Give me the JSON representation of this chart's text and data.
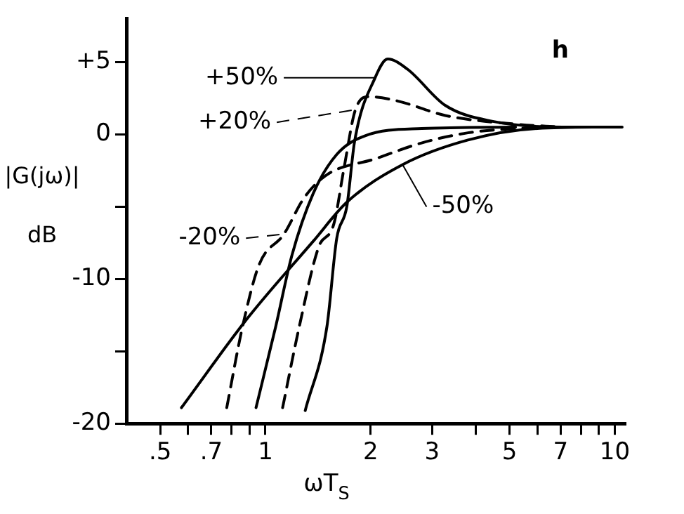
{
  "chart_data": {
    "type": "line",
    "xlabel": "ωT$_{S}$",
    "ylabel": "|G(jω)| dB",
    "log": "x",
    "grid": false,
    "legend": "left",
    "marker": "none",
    "xlim": [
      0.4,
      10.7
    ],
    "ylim": [
      -20,
      8
    ],
    "xticks": [
      {
        "value": 0.5,
        "label": ".5"
      },
      {
        "value": 0.6,
        "label": null
      },
      {
        "value": 0.7,
        "label": ".7"
      },
      {
        "value": 0.8,
        "label": null
      },
      {
        "value": 0.9,
        "label": null
      },
      1,
      2,
      3,
      {
        "value": 4,
        "label": null
      },
      5,
      {
        "value": 6,
        "label": null
      },
      7,
      {
        "value": 8,
        "label": null
      },
      {
        "value": 9,
        "label": null
      },
      10
    ],
    "yticks": [
      -20,
      {
        "value": -15,
        "label": null
      },
      -10,
      {
        "value": -5,
        "label": null
      },
      0,
      {
        "value": 5,
        "label": "+5"
      }
    ],
    "series": [
      {
        "name": "+50%",
        "color": "#000000",
        "line_style": "solid",
        "x": [
          1.3,
          1.5,
          1.6,
          1.71,
          1.8,
          2.06,
          2.24,
          2.55,
          3.27,
          4.45,
          7.1,
          10.5
        ],
        "values": [
          -19.1,
          -13.3,
          -7.2,
          -5.0,
          -0.5,
          3.9,
          5.2,
          4.5,
          2.0,
          0.9,
          0.5,
          0.5
        ]
      },
      {
        "name": "+20%",
        "color": "#000000",
        "line_style": "dashed",
        "x": [
          1.12,
          1.25,
          1.42,
          1.57,
          1.68,
          1.81,
          1.98,
          2.39,
          3.27,
          5.2,
          7
        ],
        "values": [
          -18.9,
          -13.3,
          -7.8,
          -6.2,
          -2.3,
          1.7,
          2.6,
          2.3,
          1.3,
          0.7,
          0.5
        ]
      },
      {
        "color": "#000000",
        "line_style": "solid",
        "x": [
          0.94,
          1.07,
          1.19,
          1.37,
          1.6,
          1.93,
          2.8,
          5.2
        ],
        "values": [
          -18.9,
          -13.3,
          -8.4,
          -4.1,
          -1.4,
          -0.1,
          0.4,
          0.5
        ]
      },
      {
        "name": "-20%",
        "color": "#000000",
        "line_style": "dashed",
        "x": [
          0.775,
          0.86,
          0.96,
          1.13,
          1.29,
          1.5,
          2.06,
          2.8,
          3.8,
          6.0
        ],
        "values": [
          -18.9,
          -13.3,
          -9.0,
          -6.9,
          -4.4,
          -2.8,
          -1.7,
          -0.6,
          0.1,
          0.5
        ]
      },
      {
        "name": "-50%",
        "color": "#000000",
        "line_style": "solid",
        "x": [
          0.575,
          0.89,
          1.37,
          1.71,
          2.47,
          3.8,
          6.0,
          9.8
        ],
        "values": [
          -18.9,
          -12.7,
          -7.4,
          -4.7,
          -2.1,
          -0.4,
          0.4,
          0.5
        ]
      }
    ],
    "annotations": [
      "h"
    ]
  }
}
